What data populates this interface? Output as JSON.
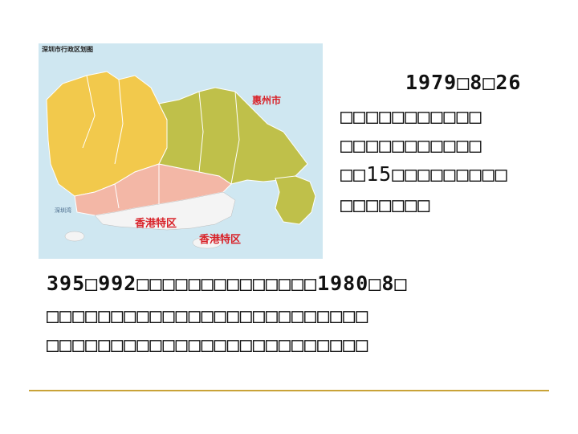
{
  "map": {
    "title": "深圳市行政区划图",
    "labels": {
      "huizhou": "惠州市",
      "hongkong_1": "香港特区",
      "hongkong_2": "香港特区",
      "shenzhen_bay": "深圳湾"
    },
    "colors": {
      "sea": "#cfe7f1",
      "baoan": "#f2c94c",
      "longgang": "#bfc04a",
      "inner": "#f3b7a6",
      "hk_land": "#ffffff",
      "red_label": "#d8232a"
    }
  },
  "text": {
    "line1": "1979□8□26",
    "line2": "□□□□□□□□□□□",
    "line3": "□□□□□□□□□□□",
    "line4": "□□15□□□□□□□□□",
    "line5": "□□□□□□□",
    "line6": "395□992□□□□□□□□□□□□□□1980□8□",
    "line7": "□□□□□□□□□□□□□□□□□□□□□□□□□",
    "line8": "□□□□□□□□□□□□□□□□□□□□□□□□□"
  }
}
